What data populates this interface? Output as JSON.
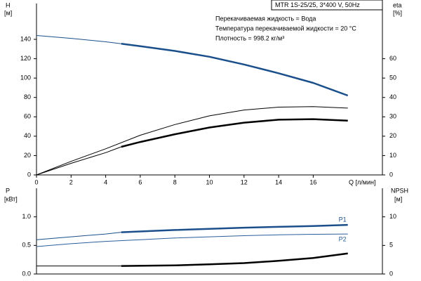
{
  "chart_data": [
    {
      "type": "line",
      "title": "MTR 1S-25/25, 3*400 V, 50Hz",
      "annotations": [
        "Перекачиваемая жидкость = Вода",
        "Температура перекачиваемой жидкости = 20 °C",
        "Плотность = 998.2 кг/м³"
      ],
      "ylabel": "H",
      "yunit": "[м]",
      "y2label": "eta",
      "y2unit": "[%]",
      "xlabel": "Q [л/мин]",
      "xlim": [
        0,
        20
      ],
      "xticks": [
        0,
        2,
        4,
        6,
        8,
        10,
        12,
        14,
        16
      ],
      "ylim": [
        0,
        177
      ],
      "yticks": [
        0,
        20,
        40,
        60,
        80,
        100,
        120,
        140
      ],
      "y2lim": [
        0,
        88.5
      ],
      "y2ticks": [
        0,
        10,
        20,
        30,
        40,
        50,
        60
      ],
      "series": [
        {
          "color": "#1a4f8b",
          "width": 1,
          "x": [
            0,
            2,
            4,
            4.9
          ],
          "values": [
            144,
            141,
            137.5,
            135.5
          ]
        },
        {
          "color": "#1a4f8b",
          "width": 2.5,
          "x": [
            4.9,
            6,
            8,
            10,
            12,
            14,
            16,
            18
          ],
          "values": [
            135.5,
            133,
            128,
            122,
            114,
            105,
            95,
            82
          ]
        },
        {
          "color": "#000000",
          "width": 1,
          "axis": "y2",
          "x": [
            0,
            2,
            4,
            6,
            8,
            10,
            12,
            14,
            16,
            18
          ],
          "values": [
            0,
            7,
            13.5,
            20.5,
            26,
            30.5,
            33.5,
            35,
            35.3,
            34.5
          ]
        },
        {
          "color": "#000000",
          "width": 1,
          "axis": "y2",
          "x": [
            0,
            2,
            4,
            4.9
          ],
          "values": [
            0,
            6,
            11.5,
            14.5
          ]
        },
        {
          "color": "#000000",
          "width": 2.5,
          "axis": "y2",
          "x": [
            4.9,
            6,
            8,
            10,
            12,
            14,
            16,
            18
          ],
          "values": [
            14.5,
            17,
            21,
            24.5,
            27,
            28.5,
            28.8,
            28
          ]
        }
      ]
    },
    {
      "type": "line",
      "ylabel": "P",
      "yunit": "[кВт]",
      "y2label": "NPSH",
      "y2unit": "[м]",
      "xlim": [
        0,
        20
      ],
      "ylim": [
        0,
        1.5
      ],
      "yticks": [
        {
          "value": 0,
          "label": "0.0"
        },
        {
          "value": 0.5,
          "label": "0.5"
        },
        {
          "value": 1,
          "label": "1.0"
        }
      ],
      "y2lim": [
        0,
        15
      ],
      "y2ticks": [
        0,
        5,
        10
      ],
      "series": [
        {
          "color": "#1a4f8b",
          "width": 1,
          "x": [
            0,
            2,
            4,
            4.9
          ],
          "values": [
            0.6,
            0.65,
            0.7,
            0.73
          ]
        },
        {
          "name": "P1",
          "color": "#1a4f8b",
          "width": 2.5,
          "x": [
            4.9,
            8,
            12,
            16,
            18
          ],
          "values": [
            0.73,
            0.77,
            0.81,
            0.84,
            0.86
          ]
        },
        {
          "name": "P2",
          "color": "#2a5d9a",
          "width": 1,
          "x": [
            0,
            2,
            4,
            6,
            8,
            10,
            12,
            14,
            16,
            18
          ],
          "values": [
            0.48,
            0.53,
            0.57,
            0.6,
            0.63,
            0.65,
            0.67,
            0.685,
            0.695,
            0.7
          ]
        },
        {
          "color": "#000000",
          "width": 1,
          "axis": "y2",
          "x": [
            0,
            4.9
          ],
          "values": [
            1.4,
            1.4
          ]
        },
        {
          "color": "#000000",
          "width": 2.5,
          "axis": "y2",
          "x": [
            4.9,
            8,
            10,
            12,
            14,
            16,
            18
          ],
          "values": [
            1.4,
            1.5,
            1.7,
            1.9,
            2.3,
            2.8,
            3.6
          ]
        }
      ]
    }
  ]
}
